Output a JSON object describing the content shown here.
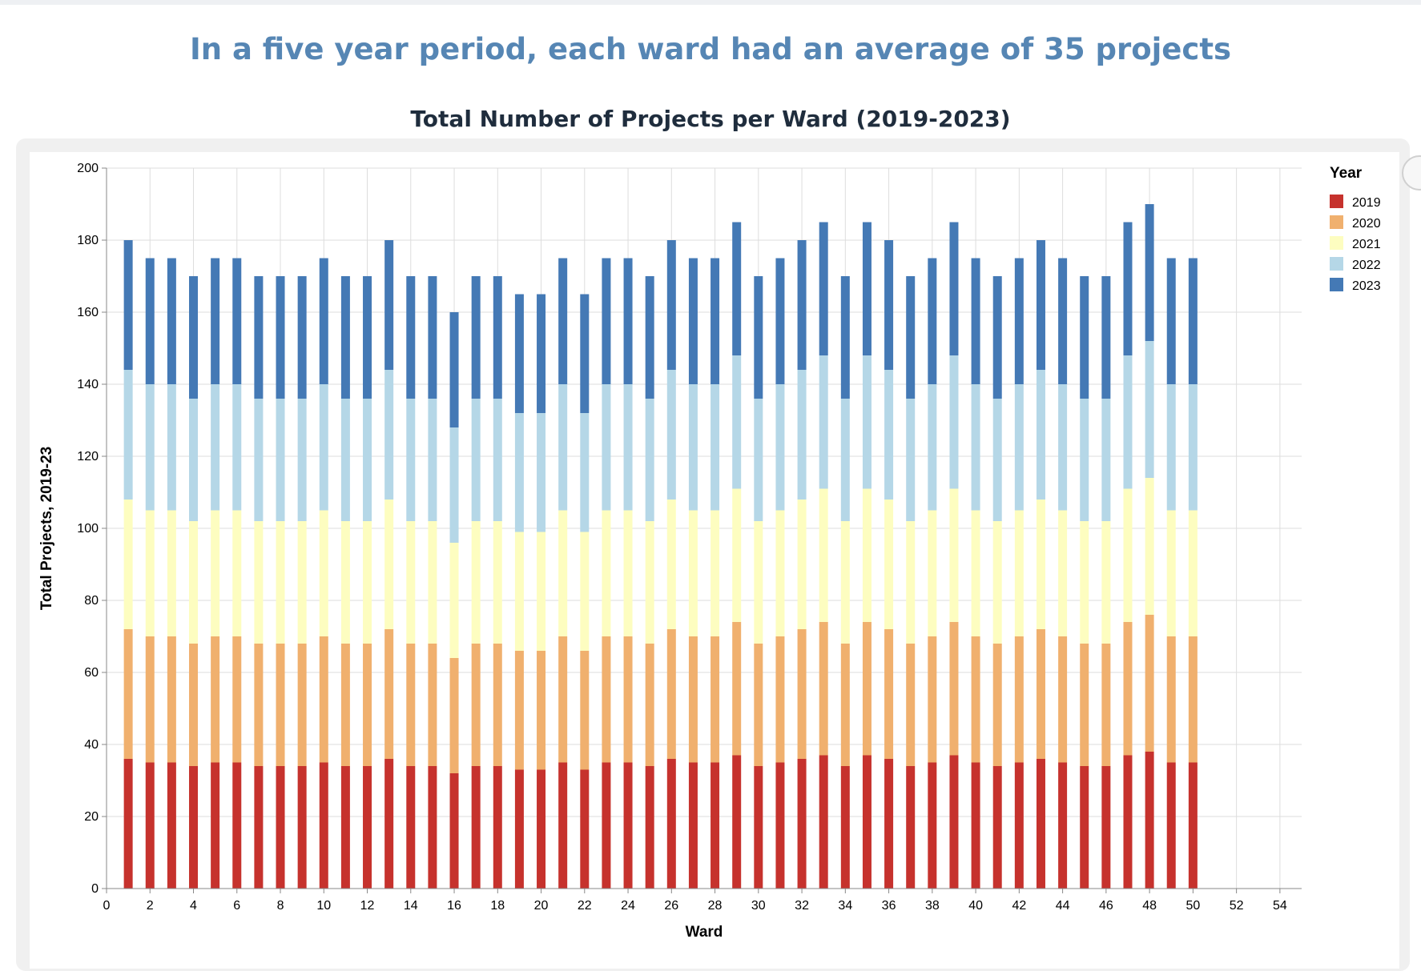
{
  "headline": "In a five year period, each ward had an average of 35 projects",
  "chart_data": {
    "type": "bar",
    "stacked": true,
    "title": "Total Number of Projects per Ward (2019-2023)",
    "xlabel": "Ward",
    "ylabel": "Total Projects, 2019-23",
    "xlim": [
      0,
      55
    ],
    "ylim": [
      0,
      200
    ],
    "x_ticks": [
      0,
      2,
      4,
      6,
      8,
      10,
      12,
      14,
      16,
      18,
      20,
      22,
      24,
      26,
      28,
      30,
      32,
      34,
      36,
      38,
      40,
      42,
      44,
      46,
      48,
      50,
      52,
      54
    ],
    "y_ticks": [
      0,
      20,
      40,
      60,
      80,
      100,
      120,
      140,
      160,
      180,
      200
    ],
    "grid": true,
    "legend": {
      "title": "Year",
      "position": "right"
    },
    "categories": [
      1,
      2,
      3,
      4,
      5,
      6,
      7,
      8,
      9,
      10,
      11,
      12,
      13,
      14,
      15,
      16,
      17,
      18,
      19,
      20,
      21,
      22,
      23,
      24,
      25,
      26,
      27,
      28,
      29,
      30,
      31,
      32,
      33,
      34,
      35,
      36,
      37,
      38,
      39,
      40,
      41,
      42,
      43,
      44,
      45,
      46,
      47,
      48,
      49,
      50
    ],
    "series": [
      {
        "name": "2019",
        "color": "#c6322d",
        "values": [
          36,
          35,
          35,
          34,
          35,
          35,
          34,
          34,
          34,
          35,
          34,
          34,
          36,
          34,
          34,
          32,
          34,
          34,
          33,
          33,
          35,
          33,
          35,
          35,
          34,
          36,
          35,
          35,
          37,
          34,
          35,
          36,
          37,
          34,
          37,
          36,
          34,
          35,
          37,
          35,
          34,
          35,
          36,
          35,
          34,
          34,
          37,
          38,
          35,
          35
        ]
      },
      {
        "name": "2020",
        "color": "#f0b06e",
        "values": [
          36,
          35,
          35,
          34,
          35,
          35,
          34,
          34,
          34,
          35,
          34,
          34,
          36,
          34,
          34,
          32,
          34,
          34,
          33,
          33,
          35,
          33,
          35,
          35,
          34,
          36,
          35,
          35,
          37,
          34,
          35,
          36,
          37,
          34,
          37,
          36,
          34,
          35,
          37,
          35,
          34,
          35,
          36,
          35,
          34,
          34,
          37,
          38,
          35,
          35
        ]
      },
      {
        "name": "2021",
        "color": "#fdfdc0",
        "values": [
          36,
          35,
          35,
          34,
          35,
          35,
          34,
          34,
          34,
          35,
          34,
          34,
          36,
          34,
          34,
          32,
          34,
          34,
          33,
          33,
          35,
          33,
          35,
          35,
          34,
          36,
          35,
          35,
          37,
          34,
          35,
          36,
          37,
          34,
          37,
          36,
          34,
          35,
          37,
          35,
          34,
          35,
          36,
          35,
          34,
          34,
          37,
          38,
          35,
          35
        ]
      },
      {
        "name": "2022",
        "color": "#b5d7e7",
        "values": [
          36,
          35,
          35,
          34,
          35,
          35,
          34,
          34,
          34,
          35,
          34,
          34,
          36,
          34,
          34,
          32,
          34,
          34,
          33,
          33,
          35,
          33,
          35,
          35,
          34,
          36,
          35,
          35,
          37,
          34,
          35,
          36,
          37,
          34,
          37,
          36,
          34,
          35,
          37,
          35,
          34,
          35,
          36,
          35,
          34,
          34,
          37,
          38,
          35,
          35
        ]
      },
      {
        "name": "2023",
        "color": "#4479b5",
        "values": [
          36,
          35,
          35,
          34,
          35,
          35,
          34,
          34,
          34,
          35,
          34,
          34,
          36,
          34,
          34,
          32,
          34,
          34,
          33,
          33,
          35,
          33,
          35,
          35,
          34,
          36,
          35,
          35,
          37,
          34,
          35,
          36,
          37,
          34,
          37,
          36,
          34,
          35,
          37,
          35,
          34,
          35,
          36,
          35,
          34,
          34,
          37,
          38,
          35,
          35
        ]
      }
    ]
  }
}
